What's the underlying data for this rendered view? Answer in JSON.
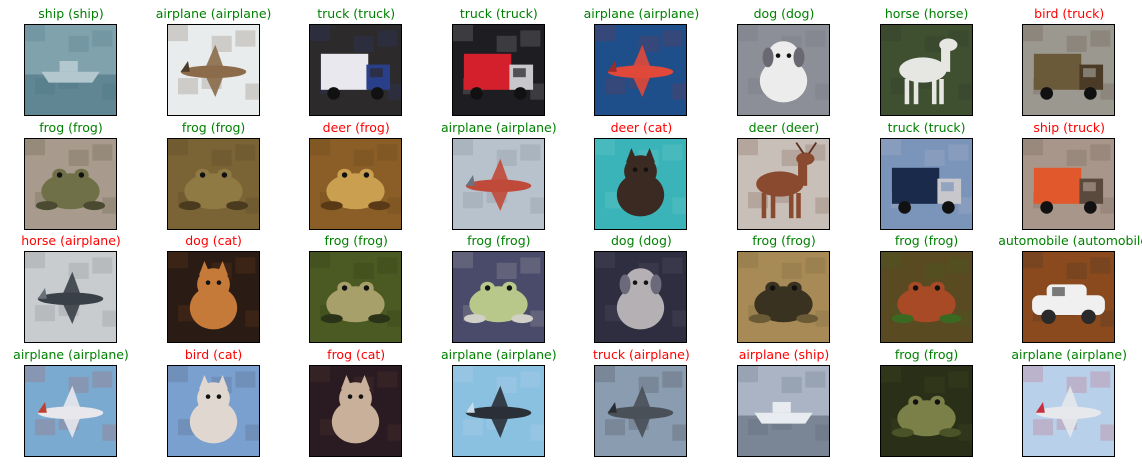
{
  "colors": {
    "correct": "#008000",
    "wrong": "#ff0000"
  },
  "grid": {
    "rows": 4,
    "cols": 8,
    "tiles": [
      {
        "label": "ship (ship)",
        "correct": true,
        "subject": "ship",
        "palette": {
          "bg": "#7fa2ad",
          "fg": "#b3c8ce",
          "accent": "#3f6a78"
        }
      },
      {
        "label": "airplane (airplane)",
        "correct": true,
        "subject": "airplane",
        "palette": {
          "bg": "#e9ecec",
          "fg": "#8b6b4a",
          "accent": "#4d3b2a"
        }
      },
      {
        "label": "truck (truck)",
        "correct": true,
        "subject": "truck",
        "palette": {
          "bg": "#2d2a2c",
          "fg": "#e8e8ee",
          "accent": "#2a3f8a"
        }
      },
      {
        "label": "truck (truck)",
        "correct": true,
        "subject": "truck",
        "palette": {
          "bg": "#1e1e22",
          "fg": "#d4202c",
          "accent": "#c8c8cc"
        }
      },
      {
        "label": "airplane (airplane)",
        "correct": true,
        "subject": "airplane",
        "palette": {
          "bg": "#1f4f8a",
          "fg": "#e0483a",
          "accent": "#9a2d2a"
        }
      },
      {
        "label": "dog (dog)",
        "correct": true,
        "subject": "dog",
        "palette": {
          "bg": "#8c8f98",
          "fg": "#ececec",
          "accent": "#6a6870"
        }
      },
      {
        "label": "horse (horse)",
        "correct": true,
        "subject": "horse",
        "palette": {
          "bg": "#3f5030",
          "fg": "#e6e6e2",
          "accent": "#2a3326"
        }
      },
      {
        "label": "bird (truck)",
        "correct": false,
        "subject": "truck",
        "palette": {
          "bg": "#9b9890",
          "fg": "#6a5a3a",
          "accent": "#4a3a26"
        }
      },
      {
        "label": "frog (frog)",
        "correct": true,
        "subject": "frog",
        "palette": {
          "bg": "#a89a8c",
          "fg": "#6f7048",
          "accent": "#4a4a30"
        }
      },
      {
        "label": "frog (frog)",
        "correct": true,
        "subject": "frog",
        "palette": {
          "bg": "#7a6436",
          "fg": "#8f7a44",
          "accent": "#4a3a1e"
        }
      },
      {
        "label": "deer (frog)",
        "correct": false,
        "subject": "frog",
        "palette": {
          "bg": "#8a5e26",
          "fg": "#caa050",
          "accent": "#5a3a16"
        }
      },
      {
        "label": "airplane (airplane)",
        "correct": true,
        "subject": "airplane",
        "palette": {
          "bg": "#b8c2cc",
          "fg": "#c04a3a",
          "accent": "#6a7480"
        }
      },
      {
        "label": "deer (cat)",
        "correct": false,
        "subject": "cat",
        "palette": {
          "bg": "#3ab4b8",
          "fg": "#3a2a22",
          "accent": "#8ad8d8"
        }
      },
      {
        "label": "deer (deer)",
        "correct": true,
        "subject": "deer",
        "palette": {
          "bg": "#c8c0b8",
          "fg": "#8a4a30",
          "accent": "#5a3020"
        }
      },
      {
        "label": "truck (truck)",
        "correct": true,
        "subject": "truck",
        "palette": {
          "bg": "#7a94ba",
          "fg": "#1a2a4a",
          "accent": "#c8c8cc"
        }
      },
      {
        "label": "ship (truck)",
        "correct": false,
        "subject": "truck",
        "palette": {
          "bg": "#a8968a",
          "fg": "#e0582c",
          "accent": "#5a4a3e"
        }
      },
      {
        "label": "horse (airplane)",
        "correct": false,
        "subject": "airplane",
        "palette": {
          "bg": "#c8ccce",
          "fg": "#3a4048",
          "accent": "#6a7078"
        }
      },
      {
        "label": "dog (cat)",
        "correct": false,
        "subject": "cat",
        "palette": {
          "bg": "#2a1c14",
          "fg": "#c67a3a",
          "accent": "#8a4a20"
        }
      },
      {
        "label": "frog (frog)",
        "correct": true,
        "subject": "frog",
        "palette": {
          "bg": "#4a5a22",
          "fg": "#a8a06a",
          "accent": "#2a3218"
        }
      },
      {
        "label": "frog (frog)",
        "correct": true,
        "subject": "frog",
        "palette": {
          "bg": "#4a4a6a",
          "fg": "#b8c88a",
          "accent": "#d0d0c8"
        }
      },
      {
        "label": "dog (dog)",
        "correct": true,
        "subject": "dog",
        "palette": {
          "bg": "#2e2e40",
          "fg": "#b4b0b4",
          "accent": "#6a6a7a"
        }
      },
      {
        "label": "frog (frog)",
        "correct": true,
        "subject": "frog",
        "palette": {
          "bg": "#a88a56",
          "fg": "#3a3220",
          "accent": "#6a5a36"
        }
      },
      {
        "label": "frog (frog)",
        "correct": true,
        "subject": "frog",
        "palette": {
          "bg": "#5a4a22",
          "fg": "#a84a26",
          "accent": "#3a6a22"
        }
      },
      {
        "label": "automobile (automobile)",
        "correct": true,
        "subject": "car",
        "palette": {
          "bg": "#8a4a1e",
          "fg": "#f0f0f0",
          "accent": "#2a2a2a"
        }
      },
      {
        "label": "airplane (airplane)",
        "correct": true,
        "subject": "airplane",
        "palette": {
          "bg": "#7aaad0",
          "fg": "#e8e8ec",
          "accent": "#c04030"
        }
      },
      {
        "label": "bird (cat)",
        "correct": false,
        "subject": "cat",
        "palette": {
          "bg": "#7aa0d0",
          "fg": "#e0d8d0",
          "accent": "#4a4a52"
        }
      },
      {
        "label": "frog (cat)",
        "correct": false,
        "subject": "cat",
        "palette": {
          "bg": "#2a1a22",
          "fg": "#c8b09a",
          "accent": "#6a4a3a"
        }
      },
      {
        "label": "airplane (airplane)",
        "correct": true,
        "subject": "airplane",
        "palette": {
          "bg": "#8ac0e0",
          "fg": "#2a3038",
          "accent": "#c8dcec"
        }
      },
      {
        "label": "truck (airplane)",
        "correct": false,
        "subject": "airplane",
        "palette": {
          "bg": "#8a9cb0",
          "fg": "#4a5058",
          "accent": "#2a2e34"
        }
      },
      {
        "label": "airplane (ship)",
        "correct": false,
        "subject": "ship",
        "palette": {
          "bg": "#aab4c4",
          "fg": "#e8ecf0",
          "accent": "#4a5868"
        }
      },
      {
        "label": "frog (frog)",
        "correct": true,
        "subject": "frog",
        "palette": {
          "bg": "#2a3018",
          "fg": "#7a8048",
          "accent": "#4a5228"
        }
      },
      {
        "label": "airplane (airplane)",
        "correct": true,
        "subject": "airplane",
        "palette": {
          "bg": "#b8d0ea",
          "fg": "#e6e8ec",
          "accent": "#c83040"
        }
      }
    ]
  }
}
